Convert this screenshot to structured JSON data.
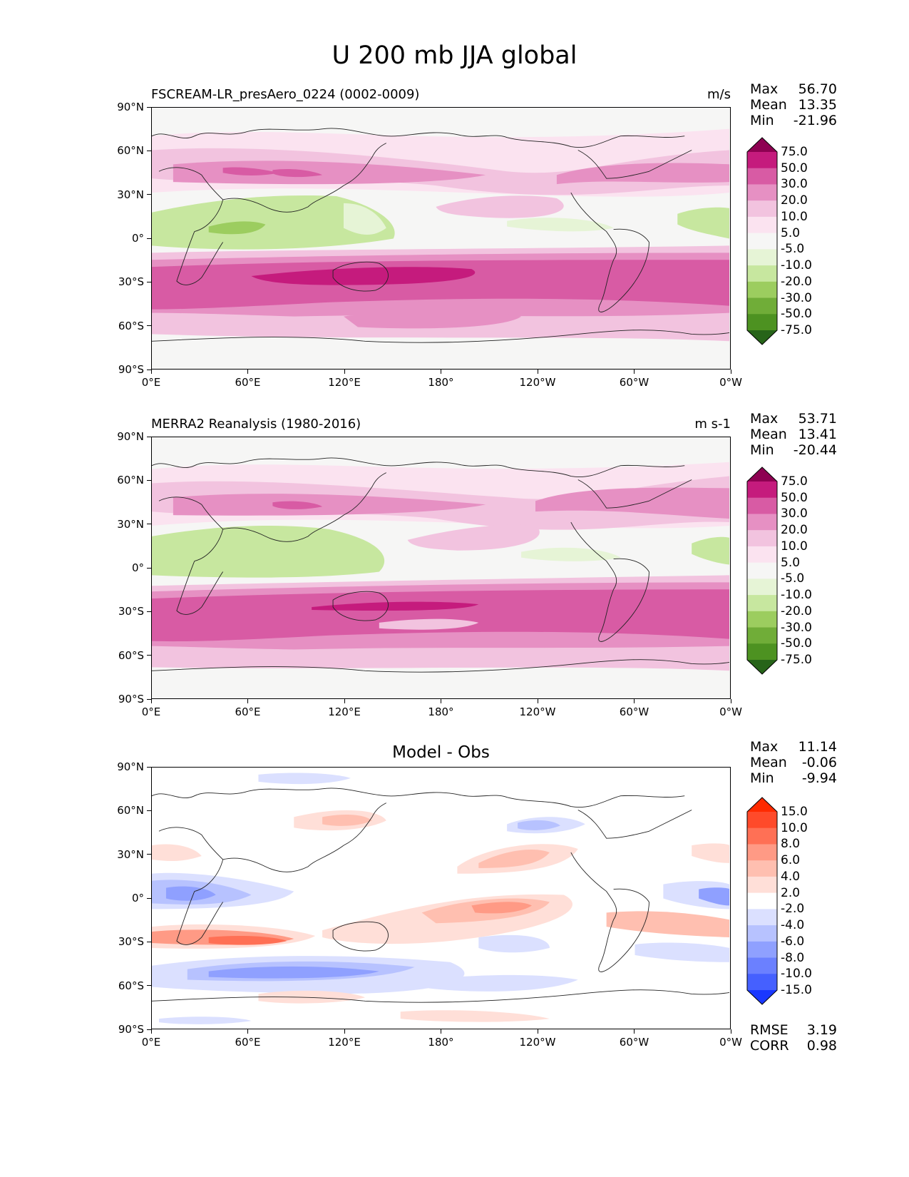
{
  "figure": {
    "title": "U 200 mb JJA global"
  },
  "chart_data": [
    {
      "type": "heatmap",
      "id": "model",
      "title_left": "FSCREAM-LR_presAero_0224 (0002-0009)",
      "title_right": "m/s",
      "stats": [
        {
          "label": "Max",
          "value": "56.70"
        },
        {
          "label": "Mean",
          "value": "13.35"
        },
        {
          "label": "Min",
          "value": "-21.96"
        }
      ],
      "x_ticks": [
        "0°E",
        "60°E",
        "120°E",
        "180°",
        "120°W",
        "60°W",
        "0°W"
      ],
      "y_ticks": [
        "90°N",
        "60°N",
        "30°N",
        "0°",
        "30°S",
        "60°S",
        "90°S"
      ],
      "xlim": [
        0,
        360
      ],
      "ylim": [
        -90,
        90
      ],
      "colorbar": {
        "labels": [
          "75.0",
          "50.0",
          "30.0",
          "20.0",
          "10.0",
          "5.0",
          "-5.0",
          "-10.0",
          "-20.0",
          "-30.0",
          "-50.0",
          "-75.0"
        ],
        "colors": [
          "#8e0152",
          "#c51b7d",
          "#d85ba4",
          "#e690c3",
          "#f2c3df",
          "#fbe3f0",
          "#f6f6f5",
          "#e6f4d6",
          "#c7e79f",
          "#9ccd5f",
          "#70ad38",
          "#4d9221",
          "#276419"
        ],
        "extend": "both"
      }
    },
    {
      "type": "heatmap",
      "id": "obs",
      "title_left": "MERRA2 Reanalysis (1980-2016)",
      "title_right": "m s-1",
      "stats": [
        {
          "label": "Max",
          "value": "53.71"
        },
        {
          "label": "Mean",
          "value": "13.41"
        },
        {
          "label": "Min",
          "value": "-20.44"
        }
      ],
      "x_ticks": [
        "0°E",
        "60°E",
        "120°E",
        "180°",
        "120°W",
        "60°W",
        "0°W"
      ],
      "y_ticks": [
        "90°N",
        "60°N",
        "30°N",
        "0°",
        "30°S",
        "60°S",
        "90°S"
      ],
      "xlim": [
        0,
        360
      ],
      "ylim": [
        -90,
        90
      ],
      "colorbar": {
        "labels": [
          "75.0",
          "50.0",
          "30.0",
          "20.0",
          "10.0",
          "5.0",
          "-5.0",
          "-10.0",
          "-20.0",
          "-30.0",
          "-50.0",
          "-75.0"
        ],
        "colors": [
          "#8e0152",
          "#c51b7d",
          "#d85ba4",
          "#e690c3",
          "#f2c3df",
          "#fbe3f0",
          "#f6f6f5",
          "#e6f4d6",
          "#c7e79f",
          "#9ccd5f",
          "#70ad38",
          "#4d9221",
          "#276419"
        ],
        "extend": "both"
      }
    },
    {
      "type": "heatmap",
      "id": "diff",
      "title_center": "Model - Obs",
      "stats": [
        {
          "label": "Max",
          "value": "11.14"
        },
        {
          "label": "Mean",
          "value": "-0.06"
        },
        {
          "label": "Min",
          "value": "-9.94"
        }
      ],
      "extra_stats": [
        {
          "label": "RMSE",
          "value": "3.19"
        },
        {
          "label": "CORR",
          "value": "0.98"
        }
      ],
      "x_ticks": [
        "0°E",
        "60°E",
        "120°E",
        "180°",
        "120°W",
        "60°W",
        "0°W"
      ],
      "y_ticks": [
        "90°N",
        "60°N",
        "30°N",
        "0°",
        "30°S",
        "60°S",
        "90°S"
      ],
      "xlim": [
        0,
        360
      ],
      "ylim": [
        -90,
        90
      ],
      "colorbar": {
        "labels": [
          "15.0",
          "10.0",
          "8.0",
          "6.0",
          "4.0",
          "2.0",
          "-2.0",
          "-4.0",
          "-6.0",
          "-8.0",
          "-10.0",
          "-15.0"
        ],
        "colors": [
          "#ff2a00",
          "#ff4a2a",
          "#ff7055",
          "#ff9a85",
          "#ffbfb0",
          "#ffdfd8",
          "#ffffff",
          "#dbe0ff",
          "#b7c2ff",
          "#8fa0ff",
          "#6b80ff",
          "#4560ff",
          "#1a38ff"
        ],
        "extend": "both"
      }
    }
  ]
}
